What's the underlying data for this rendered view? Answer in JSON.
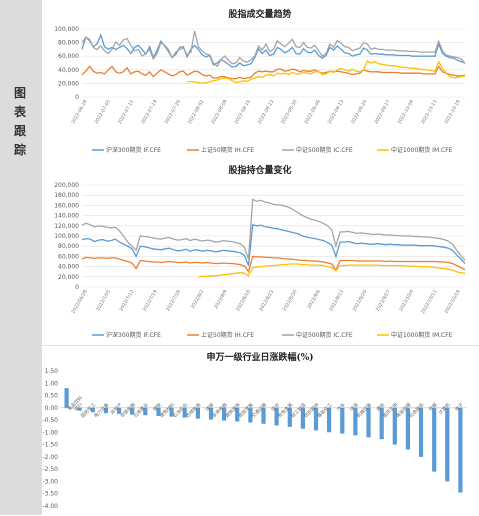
{
  "sidebar": {
    "label": [
      "图",
      "表",
      "跟",
      "踪"
    ]
  },
  "colors": {
    "if": "#5b9bd5",
    "ih": "#ed7d31",
    "ic": "#a5a5a5",
    "im": "#ffc000",
    "bar": "#5b9bd5",
    "grid": "#e2e2e2",
    "axis": "#bfbfbf"
  },
  "chart_data": [
    {
      "type": "line",
      "title": "股指成交量趋势",
      "ylim": [
        0,
        100000
      ],
      "yticks": [
        "100,000",
        "80,000",
        "60,000",
        "40,000",
        "20,000",
        "0"
      ],
      "xticks": [
        "2022-06-28",
        "2022-07-05",
        "2022-07-12",
        "2022-07-19",
        "2022-07-26",
        "2022-08-02",
        "2022-08-09",
        "2022-08-16",
        "2022-08-23",
        "2022-08-30",
        "2022-09-06",
        "2022-09-13",
        "2022-09-20",
        "2022-09-27",
        "2022-10-04",
        "2022-10-11",
        "2022-10-18"
      ],
      "legend": [
        "沪深300期货 IF.CFE",
        "上证50期货 IH.CFE",
        "中证500期货 IC.CFE",
        "中证1000期货 IM.CFE"
      ],
      "legend_position": "bottom",
      "grid": true,
      "series": [
        {
          "name": "沪深300期货 IF.CFE",
          "color_key": "if",
          "values": [
            70000,
            88000,
            83000,
            74000,
            78000,
            91000,
            74000,
            70000,
            73000,
            70000,
            73000,
            76000,
            71000,
            64000,
            73000,
            76000,
            70000,
            63000,
            74000,
            58000,
            69000,
            82000,
            75000,
            67000,
            58000,
            63000,
            73000,
            74000,
            59000,
            70000,
            76000,
            70000,
            62000,
            59000,
            61000,
            47000,
            50000,
            55000,
            52000,
            48000,
            44000,
            45000,
            50000,
            46000,
            47000,
            49000,
            58000,
            71000,
            64000,
            69000,
            61000,
            63000,
            73000,
            70000,
            65000,
            68000,
            73000,
            64000,
            63000,
            71000,
            66000,
            65000,
            69000,
            61000,
            57000,
            61000,
            73000,
            69000,
            75000,
            70000,
            65000,
            64000,
            60000,
            62000,
            63000,
            72000,
            69000,
            63000,
            64000,
            63000,
            63000,
            62000,
            62000,
            62000,
            61000,
            61000,
            61000,
            61000,
            60000,
            60000,
            60000,
            60000,
            60000,
            60000,
            60000,
            78000,
            64000,
            60000,
            58000,
            57000,
            54000,
            52000,
            50000
          ]
        },
        {
          "name": "上证50期货 IH.CFE",
          "color_key": "ih",
          "values": [
            33000,
            38000,
            45000,
            38000,
            35000,
            36000,
            34000,
            40000,
            45000,
            37000,
            35000,
            37000,
            43000,
            34000,
            37000,
            38000,
            34000,
            32000,
            37000,
            30000,
            35000,
            40000,
            37000,
            34000,
            31000,
            33000,
            37000,
            38000,
            32000,
            35000,
            38000,
            37000,
            33000,
            31000,
            32000,
            28000,
            28000,
            30000,
            30000,
            28000,
            27000,
            27000,
            29000,
            27000,
            28000,
            29000,
            35000,
            38000,
            37000,
            38000,
            37000,
            37000,
            41000,
            41000,
            38000,
            39000,
            41000,
            40000,
            37000,
            39000,
            38000,
            38000,
            40000,
            37000,
            35000,
            36000,
            38000,
            37000,
            38000,
            37000,
            36000,
            35000,
            33000,
            34000,
            35000,
            40000,
            38000,
            37000,
            37000,
            37000,
            36000,
            36000,
            36000,
            36000,
            36000,
            35000,
            35000,
            35000,
            35000,
            35000,
            35000,
            34000,
            34000,
            34000,
            34000,
            45000,
            37000,
            35000,
            33000,
            32000,
            31000,
            31000,
            32000
          ]
        },
        {
          "name": "中证500期货 IC.CFE",
          "color_key": "ic",
          "values": [
            80000,
            88000,
            85000,
            73000,
            70000,
            75000,
            68000,
            64000,
            70000,
            81000,
            76000,
            84000,
            86000,
            76000,
            68000,
            70000,
            60000,
            64000,
            70000,
            56000,
            64000,
            80000,
            76000,
            70000,
            58000,
            66000,
            70000,
            72000,
            62000,
            66000,
            97000,
            74000,
            68000,
            63000,
            62000,
            50000,
            45000,
            55000,
            60000,
            54000,
            49000,
            50000,
            58000,
            53000,
            51000,
            55000,
            60000,
            75000,
            69000,
            78000,
            67000,
            70000,
            83000,
            78000,
            74000,
            79000,
            85000,
            74000,
            73000,
            80000,
            73000,
            72000,
            76000,
            68000,
            60000,
            64000,
            78000,
            73000,
            83000,
            79000,
            74000,
            73000,
            68000,
            70000,
            72000,
            80000,
            78000,
            70000,
            72000,
            70000,
            70000,
            69000,
            69000,
            69000,
            68000,
            68000,
            68000,
            67000,
            67000,
            67000,
            66000,
            66000,
            66000,
            66000,
            66000,
            82000,
            68000,
            62000,
            60000,
            59000,
            58000,
            56000,
            49000
          ]
        },
        {
          "name": "中证1000期货 IM.CFE",
          "color_key": "im",
          "values": [
            null,
            null,
            null,
            null,
            null,
            null,
            null,
            null,
            null,
            null,
            null,
            null,
            null,
            null,
            null,
            null,
            null,
            null,
            null,
            null,
            null,
            null,
            null,
            null,
            null,
            null,
            null,
            null,
            22000,
            23000,
            22000,
            21000,
            20000,
            21000,
            22000,
            24000,
            25000,
            27000,
            28000,
            27000,
            24000,
            21000,
            22000,
            24000,
            23000,
            26000,
            28000,
            30000,
            29000,
            32000,
            33000,
            31000,
            35000,
            34000,
            35000,
            33000,
            36000,
            34000,
            34000,
            36000,
            35000,
            34000,
            37000,
            38000,
            33000,
            34000,
            38000,
            36000,
            40000,
            42000,
            40000,
            38000,
            41000,
            38000,
            37000,
            40000,
            53000,
            50000,
            52000,
            49000,
            48000,
            47000,
            46000,
            46000,
            45000,
            44000,
            44000,
            43000,
            42000,
            42000,
            41000,
            40000,
            40000,
            39000,
            38000,
            52000,
            42000,
            35000,
            30000,
            28000,
            29000,
            30000,
            31000
          ]
        }
      ]
    },
    {
      "type": "line",
      "title": "股指持仓量变化",
      "ylim": [
        0,
        200000
      ],
      "yticks": [
        "200,000",
        "180,000",
        "160,000",
        "140,000",
        "120,000",
        "100,000",
        "80,000",
        "60,000",
        "40,000",
        "20,000",
        "0"
      ],
      "xticks": [
        "2022/06/28",
        "2022/7/05",
        "2022/7/12",
        "2022/7/19",
        "2022/7/26",
        "2022/8/2",
        "2022/8/9",
        "2022/8/16",
        "2022/8/23",
        "2022/8/30",
        "2022/9/6",
        "2022/9/13",
        "2022/9/20",
        "2022/9/27",
        "2022/10/4",
        "2022/10/11",
        "2022/10/18"
      ],
      "legend": [
        "沪深300期货 IF.CFE",
        "上证50期货 IH.CFE",
        "中证500期货 IC.CFE",
        "中证1000期货 IM.CFE"
      ],
      "legend_position": "bottom",
      "grid": true,
      "series": [
        {
          "name": "沪深300期货 IF.CFE",
          "color_key": "if",
          "values": [
            93000,
            95000,
            94000,
            89000,
            92000,
            93000,
            90000,
            91000,
            94000,
            88000,
            84000,
            80000,
            75000,
            60000,
            80000,
            79000,
            77000,
            75000,
            74000,
            73000,
            75000,
            76000,
            73000,
            71000,
            72000,
            74000,
            70000,
            73000,
            72000,
            70000,
            72000,
            71000,
            69000,
            70000,
            72000,
            71000,
            70000,
            69000,
            67000,
            62000,
            42000,
            122000,
            120000,
            121000,
            118000,
            117000,
            115000,
            114000,
            112000,
            110000,
            108000,
            106000,
            104000,
            100000,
            98000,
            96000,
            95000,
            93000,
            91000,
            87000,
            82000,
            60000,
            88000,
            88000,
            89000,
            87000,
            85000,
            86000,
            85000,
            84000,
            84000,
            85000,
            84000,
            83000,
            84000,
            83000,
            83000,
            82000,
            82000,
            82000,
            82000,
            81000,
            81000,
            81000,
            81000,
            80000,
            79000,
            78000,
            76000,
            72000,
            63000,
            55000,
            46000
          ]
        },
        {
          "name": "上证50期货 IH.CFE",
          "color_key": "ih",
          "values": [
            55000,
            58000,
            57000,
            56000,
            57000,
            57000,
            56000,
            57000,
            57000,
            55000,
            52000,
            50000,
            47000,
            36000,
            52000,
            51000,
            50000,
            49000,
            49000,
            48000,
            49000,
            50000,
            49000,
            48000,
            48000,
            49000,
            47000,
            48000,
            48000,
            47000,
            48000,
            47000,
            46000,
            46000,
            47000,
            46000,
            46000,
            45000,
            44000,
            41000,
            30000,
            60000,
            59000,
            59000,
            58000,
            58000,
            57000,
            57000,
            56000,
            55000,
            55000,
            54000,
            53000,
            52000,
            52000,
            51000,
            51000,
            50000,
            49000,
            47000,
            45000,
            33000,
            52000,
            52000,
            52000,
            52000,
            51000,
            51000,
            51000,
            51000,
            51000,
            51000,
            51000,
            50000,
            51000,
            50000,
            50000,
            50000,
            50000,
            50000,
            50000,
            50000,
            50000,
            50000,
            50000,
            50000,
            49000,
            49000,
            48000,
            46000,
            42000,
            38000,
            34000
          ]
        },
        {
          "name": "中证500期货 IC.CFE",
          "color_key": "ic",
          "values": [
            122000,
            125000,
            122000,
            118000,
            120000,
            119000,
            117000,
            116000,
            117000,
            110000,
            100000,
            88000,
            80000,
            72000,
            100000,
            99000,
            98000,
            96000,
            95000,
            94000,
            96000,
            97000,
            94000,
            92000,
            93000,
            95000,
            91000,
            94000,
            92000,
            90000,
            92000,
            91000,
            88000,
            89000,
            91000,
            90000,
            89000,
            87000,
            85000,
            78000,
            55000,
            172000,
            168000,
            170000,
            166000,
            165000,
            162000,
            161000,
            160000,
            158000,
            155000,
            150000,
            145000,
            140000,
            136000,
            133000,
            131000,
            128000,
            125000,
            120000,
            112000,
            80000,
            108000,
            108000,
            109000,
            107000,
            105000,
            106000,
            105000,
            104000,
            103000,
            104000,
            103000,
            102000,
            102000,
            101000,
            101000,
            100000,
            100000,
            100000,
            99000,
            99000,
            98000,
            98000,
            97000,
            96000,
            95000,
            93000,
            90000,
            84000,
            72000,
            62000,
            52000
          ]
        },
        {
          "name": "中证1000期货 IM.CFE",
          "color_key": "im",
          "values": [
            null,
            null,
            null,
            null,
            null,
            null,
            null,
            null,
            null,
            null,
            null,
            null,
            null,
            null,
            null,
            null,
            null,
            null,
            null,
            null,
            null,
            null,
            null,
            null,
            null,
            null,
            null,
            null,
            20000,
            21000,
            21000,
            22000,
            22000,
            23000,
            24000,
            25000,
            26000,
            27000,
            28000,
            27000,
            22000,
            38000,
            39000,
            40000,
            41000,
            42000,
            42000,
            43000,
            44000,
            44000,
            45000,
            45000,
            45000,
            44000,
            44000,
            43000,
            43000,
            43000,
            42000,
            40000,
            38000,
            32000,
            42000,
            42000,
            43000,
            43000,
            43000,
            43000,
            43000,
            43000,
            43000,
            43000,
            42000,
            42000,
            42000,
            42000,
            42000,
            42000,
            41000,
            41000,
            41000,
            40000,
            40000,
            40000,
            39000,
            38000,
            37000,
            36000,
            35000,
            33000,
            30000,
            28000,
            27000
          ]
        }
      ]
    },
    {
      "type": "bar",
      "title": "申万一级行业日涨跌幅(%)",
      "ylim": [
        -4.0,
        1.5
      ],
      "yticks": [
        "1.50",
        "1.00",
        "0.50",
        "0.00",
        "-0.50",
        "-1.00",
        "-1.50",
        "-2.00",
        "-2.50",
        "-3.00",
        "-3.50",
        "-4.00"
      ],
      "categories": [
        "食品饮料",
        "银行",
        "国防军工",
        "电力设备",
        "房地产",
        "非银金融",
        "公用事业",
        "钢铁",
        "建筑材料",
        "石油石化",
        "农林牧渔",
        "煤炭",
        "家用电器",
        "建筑装饰",
        "商贸零售",
        "交通运输",
        "综合",
        "有色金属",
        "轻工制造",
        "纺织服饰",
        "基础化工",
        "汽车",
        "环保",
        "机械设备",
        "通信",
        "医药生物",
        "美容护理",
        "社会服务",
        "传媒",
        "计算机",
        "电子"
      ],
      "values": [
        0.8,
        -0.12,
        -0.18,
        -0.22,
        -0.25,
        -0.28,
        -0.3,
        -0.33,
        -0.36,
        -0.4,
        -0.44,
        -0.48,
        -0.52,
        -0.56,
        -0.6,
        -0.65,
        -0.72,
        -0.78,
        -0.85,
        -0.92,
        -1.0,
        -1.05,
        -1.12,
        -1.2,
        -1.28,
        -1.5,
        -1.7,
        -2.0,
        -2.6,
        -3.0,
        -3.45
      ],
      "grid": false
    }
  ]
}
